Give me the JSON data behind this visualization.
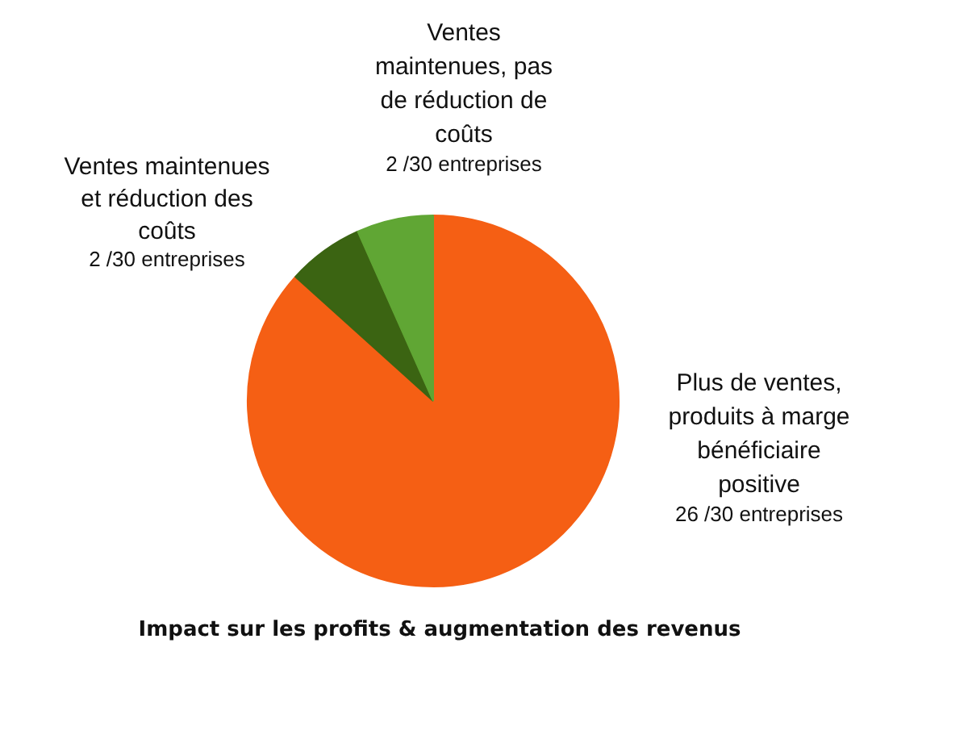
{
  "chart_data": {
    "type": "pie",
    "title": "Impact sur les profits & augmentation des revenus",
    "categories": [
      "Plus de ventes, produits à marge bénéficiaire positive",
      "Ventes maintenues et réduction des coûts",
      "Ventes maintenues, pas de réduction de coûts"
    ],
    "values": [
      26,
      2,
      2
    ],
    "colors": [
      "#f55f14",
      "#3b6412",
      "#60a634"
    ],
    "value_labels": [
      "26 /30 entreprises",
      "2 /30 entreprises",
      "2 /30 entreprises"
    ]
  }
}
